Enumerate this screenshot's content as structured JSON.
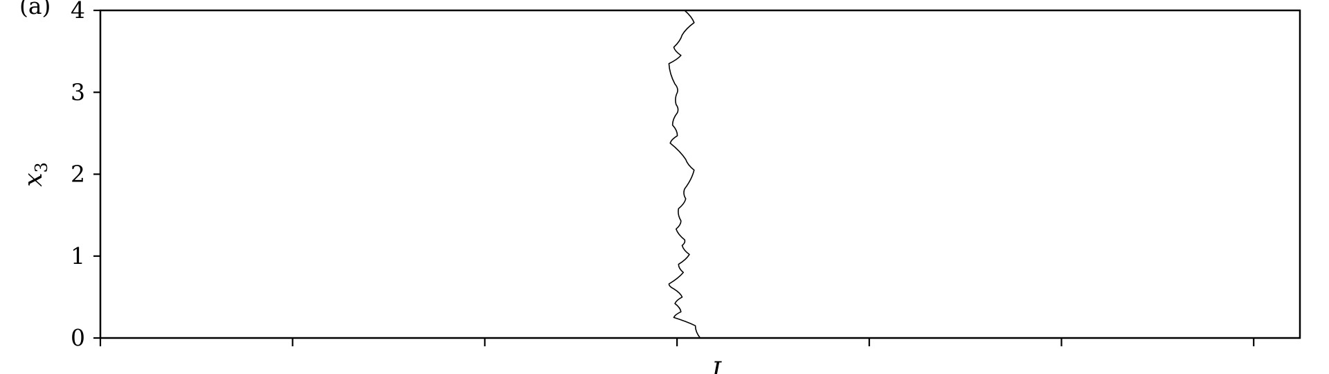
{
  "chart_data": {
    "type": "line",
    "panel_label": "(a)",
    "ylabel": "x",
    "ylabel_sub": "3",
    "xlabel_fragment": "L",
    "ylim": [
      0,
      4
    ],
    "y_ticks": [
      0,
      1,
      2,
      3,
      4
    ],
    "y_tick_labels": [
      "0",
      "1",
      "2",
      "3",
      "4"
    ],
    "x_tick_count": 7,
    "grid": false,
    "series": [
      {
        "x": [
          0.5,
          0.496,
          0.478,
          0.484,
          0.479,
          0.485,
          0.478,
          0.474,
          0.486,
          0.482,
          0.491,
          0.485,
          0.487,
          0.48,
          0.484,
          0.482,
          0.488,
          0.487,
          0.495,
          0.488,
          0.475,
          0.481,
          0.477,
          0.481,
          0.48,
          0.481,
          0.479,
          0.474,
          0.484,
          0.478,
          0.485,
          0.495,
          0.487
        ],
        "y": [
          0.0,
          0.15,
          0.25,
          0.32,
          0.42,
          0.5,
          0.6,
          0.66,
          0.8,
          0.9,
          1.02,
          1.13,
          1.2,
          1.33,
          1.43,
          1.58,
          1.7,
          1.82,
          2.05,
          2.18,
          2.38,
          2.47,
          2.6,
          2.75,
          2.85,
          3.0,
          3.1,
          3.35,
          3.45,
          3.55,
          3.7,
          3.85,
          4.0
        ]
      }
    ]
  }
}
